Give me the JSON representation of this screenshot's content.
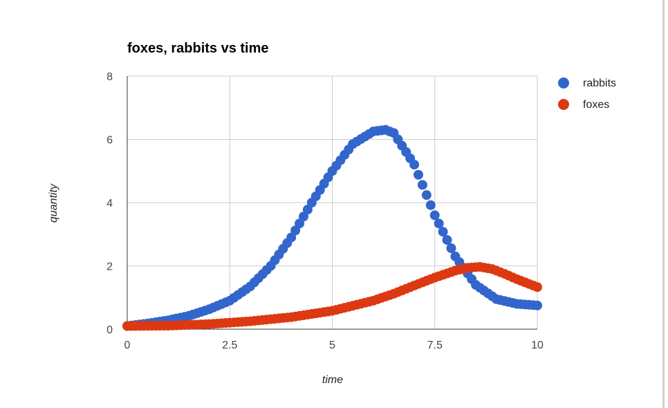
{
  "chart_data": {
    "type": "scatter",
    "title": "foxes, rabbits vs time",
    "xlabel": "time",
    "ylabel": "quantity",
    "xlim": [
      0,
      10
    ],
    "ylim": [
      0,
      8
    ],
    "xticks": [
      "0",
      "2.5",
      "5",
      "7.5",
      "10"
    ],
    "yticks": [
      "0",
      "2",
      "4",
      "6",
      "8"
    ],
    "grid": true,
    "legend_position": "top-right",
    "series": [
      {
        "name": "rabbits",
        "color": "#3366cc",
        "x": [
          0,
          0.5,
          1.0,
          1.5,
          2.0,
          2.5,
          3.0,
          3.5,
          4.0,
          4.5,
          5.0,
          5.5,
          6.0,
          6.3,
          6.5,
          7.0,
          7.5,
          8.0,
          8.5,
          9.0,
          9.5,
          10.0
        ],
        "values": [
          0.1,
          0.18,
          0.28,
          0.42,
          0.63,
          0.9,
          1.35,
          2.0,
          2.9,
          4.0,
          5.0,
          5.85,
          6.25,
          6.3,
          6.2,
          5.2,
          3.6,
          2.3,
          1.4,
          0.95,
          0.8,
          0.75
        ]
      },
      {
        "name": "foxes",
        "color": "#dc3912",
        "x": [
          0,
          1,
          2,
          3,
          4,
          5,
          6,
          6.5,
          7,
          7.5,
          8,
          8.3,
          8.6,
          8.9,
          9.2,
          9.5,
          10.0
        ],
        "values": [
          0.1,
          0.11,
          0.16,
          0.25,
          0.38,
          0.58,
          0.9,
          1.12,
          1.38,
          1.63,
          1.85,
          1.94,
          1.97,
          1.9,
          1.75,
          1.58,
          1.33
        ]
      }
    ]
  }
}
